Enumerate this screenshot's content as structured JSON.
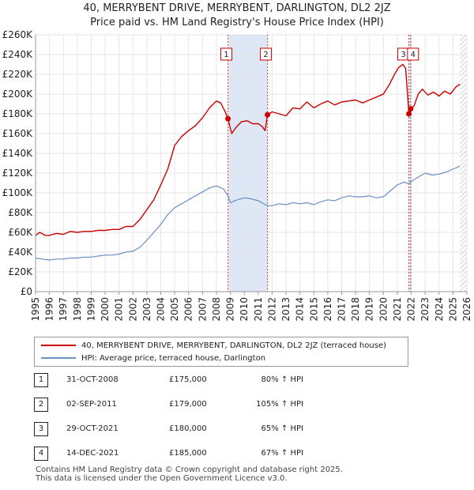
{
  "title_line1": "40, MERRYBENT DRIVE, MERRYBENT, DARLINGTON, DL2 2JZ",
  "title_line2": "Price paid vs. HM Land Registry's House Price Index (HPI)",
  "colors": {
    "property": "#cc0000",
    "hpi": "#6a8fc3",
    "band": "#dde7f5",
    "event_line": "#d04040"
  },
  "chart_data": {
    "type": "line",
    "y_tick_labels": [
      "£0",
      "£20K",
      "£40K",
      "£60K",
      "£80K",
      "£100K",
      "£120K",
      "£140K",
      "£160K",
      "£180K",
      "£200K",
      "£220K",
      "£240K",
      "£260K"
    ],
    "x_tick_labels": [
      "1995",
      "1996",
      "1997",
      "1998",
      "1999",
      "2000",
      "2001",
      "2002",
      "2003",
      "2004",
      "2005",
      "2006",
      "2007",
      "2008",
      "2009",
      "2010",
      "2011",
      "2012",
      "2013",
      "2014",
      "2015",
      "2016",
      "2017",
      "2018",
      "2019",
      "2020",
      "2021",
      "2022",
      "2023",
      "2024",
      "2025",
      "2026"
    ],
    "ylim": [
      0,
      260000
    ],
    "xlim": [
      1995,
      2026
    ],
    "series": [
      {
        "name": "40, MERRYBENT DRIVE, MERRYBENT, DARLINGTON, DL2 2JZ (terraced house)",
        "color": "#cc0000",
        "points": [
          [
            1995.0,
            57000
          ],
          [
            1995.3,
            60000
          ],
          [
            1995.7,
            57000
          ],
          [
            1996.0,
            57000
          ],
          [
            1996.5,
            59000
          ],
          [
            1997.0,
            58000
          ],
          [
            1997.5,
            61000
          ],
          [
            1998.0,
            60000
          ],
          [
            1998.5,
            61000
          ],
          [
            1999.0,
            61000
          ],
          [
            1999.5,
            62000
          ],
          [
            2000.0,
            62000
          ],
          [
            2000.5,
            63000
          ],
          [
            2001.0,
            63000
          ],
          [
            2001.5,
            66000
          ],
          [
            2002.0,
            66000
          ],
          [
            2002.5,
            73000
          ],
          [
            2003.0,
            83000
          ],
          [
            2003.5,
            93000
          ],
          [
            2004.0,
            108000
          ],
          [
            2004.5,
            124000
          ],
          [
            2005.0,
            148000
          ],
          [
            2005.5,
            157000
          ],
          [
            2006.0,
            163000
          ],
          [
            2006.5,
            168000
          ],
          [
            2007.0,
            176000
          ],
          [
            2007.5,
            186000
          ],
          [
            2008.0,
            193000
          ],
          [
            2008.3,
            191000
          ],
          [
            2008.6,
            183000
          ],
          [
            2008.83,
            175000
          ],
          [
            2009.1,
            160000
          ],
          [
            2009.4,
            166000
          ],
          [
            2009.8,
            172000
          ],
          [
            2010.2,
            173000
          ],
          [
            2010.6,
            170000
          ],
          [
            2011.0,
            170000
          ],
          [
            2011.3,
            167000
          ],
          [
            2011.5,
            163000
          ],
          [
            2011.67,
            179000
          ],
          [
            2012.0,
            182000
          ],
          [
            2012.5,
            180000
          ],
          [
            2013.0,
            178000
          ],
          [
            2013.5,
            186000
          ],
          [
            2014.0,
            185000
          ],
          [
            2014.5,
            192000
          ],
          [
            2015.0,
            186000
          ],
          [
            2015.5,
            190000
          ],
          [
            2016.0,
            193000
          ],
          [
            2016.5,
            189000
          ],
          [
            2017.0,
            192000
          ],
          [
            2017.5,
            193000
          ],
          [
            2018.0,
            194000
          ],
          [
            2018.5,
            191000
          ],
          [
            2019.0,
            194000
          ],
          [
            2019.5,
            197000
          ],
          [
            2020.0,
            200000
          ],
          [
            2020.4,
            209000
          ],
          [
            2020.8,
            220000
          ],
          [
            2021.1,
            227000
          ],
          [
            2021.4,
            230000
          ],
          [
            2021.6,
            226000
          ],
          [
            2021.83,
            180000
          ],
          [
            2021.96,
            185000
          ],
          [
            2022.2,
            188000
          ],
          [
            2022.5,
            200000
          ],
          [
            2022.8,
            205000
          ],
          [
            2023.2,
            199000
          ],
          [
            2023.6,
            202000
          ],
          [
            2024.0,
            198000
          ],
          [
            2024.4,
            203000
          ],
          [
            2024.8,
            200000
          ],
          [
            2025.2,
            207000
          ],
          [
            2025.5,
            210000
          ]
        ]
      },
      {
        "name": "HPI: Average price, terraced house, Darlington",
        "color": "#6a8fc3",
        "points": [
          [
            1995.0,
            34000
          ],
          [
            1995.5,
            33000
          ],
          [
            1996.0,
            32000
          ],
          [
            1996.5,
            33000
          ],
          [
            1997.0,
            33000
          ],
          [
            1997.5,
            34000
          ],
          [
            1998.0,
            34000
          ],
          [
            1998.5,
            35000
          ],
          [
            1999.0,
            35000
          ],
          [
            1999.5,
            36000
          ],
          [
            2000.0,
            37000
          ],
          [
            2000.5,
            37000
          ],
          [
            2001.0,
            38000
          ],
          [
            2001.5,
            40000
          ],
          [
            2002.0,
            41000
          ],
          [
            2002.5,
            45000
          ],
          [
            2003.0,
            52000
          ],
          [
            2003.5,
            60000
          ],
          [
            2004.0,
            68000
          ],
          [
            2004.5,
            78000
          ],
          [
            2005.0,
            85000
          ],
          [
            2005.5,
            89000
          ],
          [
            2006.0,
            93000
          ],
          [
            2006.5,
            97000
          ],
          [
            2007.0,
            101000
          ],
          [
            2007.5,
            105000
          ],
          [
            2008.0,
            107000
          ],
          [
            2008.5,
            104000
          ],
          [
            2008.83,
            97000
          ],
          [
            2009.0,
            90000
          ],
          [
            2009.5,
            93000
          ],
          [
            2010.0,
            95000
          ],
          [
            2010.5,
            94000
          ],
          [
            2011.0,
            92000
          ],
          [
            2011.67,
            87000
          ],
          [
            2012.0,
            87000
          ],
          [
            2012.5,
            89000
          ],
          [
            2013.0,
            88000
          ],
          [
            2013.5,
            90000
          ],
          [
            2014.0,
            89000
          ],
          [
            2014.5,
            90000
          ],
          [
            2015.0,
            88000
          ],
          [
            2015.5,
            91000
          ],
          [
            2016.0,
            93000
          ],
          [
            2016.5,
            92000
          ],
          [
            2017.0,
            95000
          ],
          [
            2017.5,
            97000
          ],
          [
            2018.0,
            96000
          ],
          [
            2018.5,
            96000
          ],
          [
            2019.0,
            97000
          ],
          [
            2019.5,
            95000
          ],
          [
            2020.0,
            96000
          ],
          [
            2020.5,
            102000
          ],
          [
            2021.0,
            108000
          ],
          [
            2021.5,
            111000
          ],
          [
            2021.83,
            109000
          ],
          [
            2021.96,
            111000
          ],
          [
            2022.5,
            116000
          ],
          [
            2023.0,
            120000
          ],
          [
            2023.5,
            118000
          ],
          [
            2024.0,
            119000
          ],
          [
            2024.5,
            121000
          ],
          [
            2025.0,
            124000
          ],
          [
            2025.5,
            127000
          ]
        ]
      }
    ],
    "events": [
      {
        "num": "1",
        "x": 2008.83,
        "value": 175000
      },
      {
        "num": "2",
        "x": 2011.67,
        "value": 179000
      },
      {
        "num": "3",
        "x": 2021.83,
        "value": 180000
      },
      {
        "num": "4",
        "x": 2021.96,
        "value": 185000
      }
    ],
    "bands": [
      [
        2008.83,
        2011.67
      ],
      [
        2021.83,
        2021.96
      ]
    ],
    "hatch_from": 2025.5
  },
  "legend": {
    "property_label": "40, MERRYBENT DRIVE, MERRYBENT, DARLINGTON, DL2 2JZ (terraced house)",
    "hpi_label": "HPI: Average price, terraced house, Darlington"
  },
  "sales": [
    {
      "num": "1",
      "date": "31-OCT-2008",
      "price": "£175,000",
      "hpi": "80% ↑ HPI"
    },
    {
      "num": "2",
      "date": "02-SEP-2011",
      "price": "£179,000",
      "hpi": "105% ↑ HPI"
    },
    {
      "num": "3",
      "date": "29-OCT-2021",
      "price": "£180,000",
      "hpi": "65% ↑ HPI"
    },
    {
      "num": "4",
      "date": "14-DEC-2021",
      "price": "£185,000",
      "hpi": "67% ↑ HPI"
    }
  ],
  "footer_line1": "Contains HM Land Registry data © Crown copyright and database right 2025.",
  "footer_line2": "This data is licensed under the Open Government Licence v3.0."
}
